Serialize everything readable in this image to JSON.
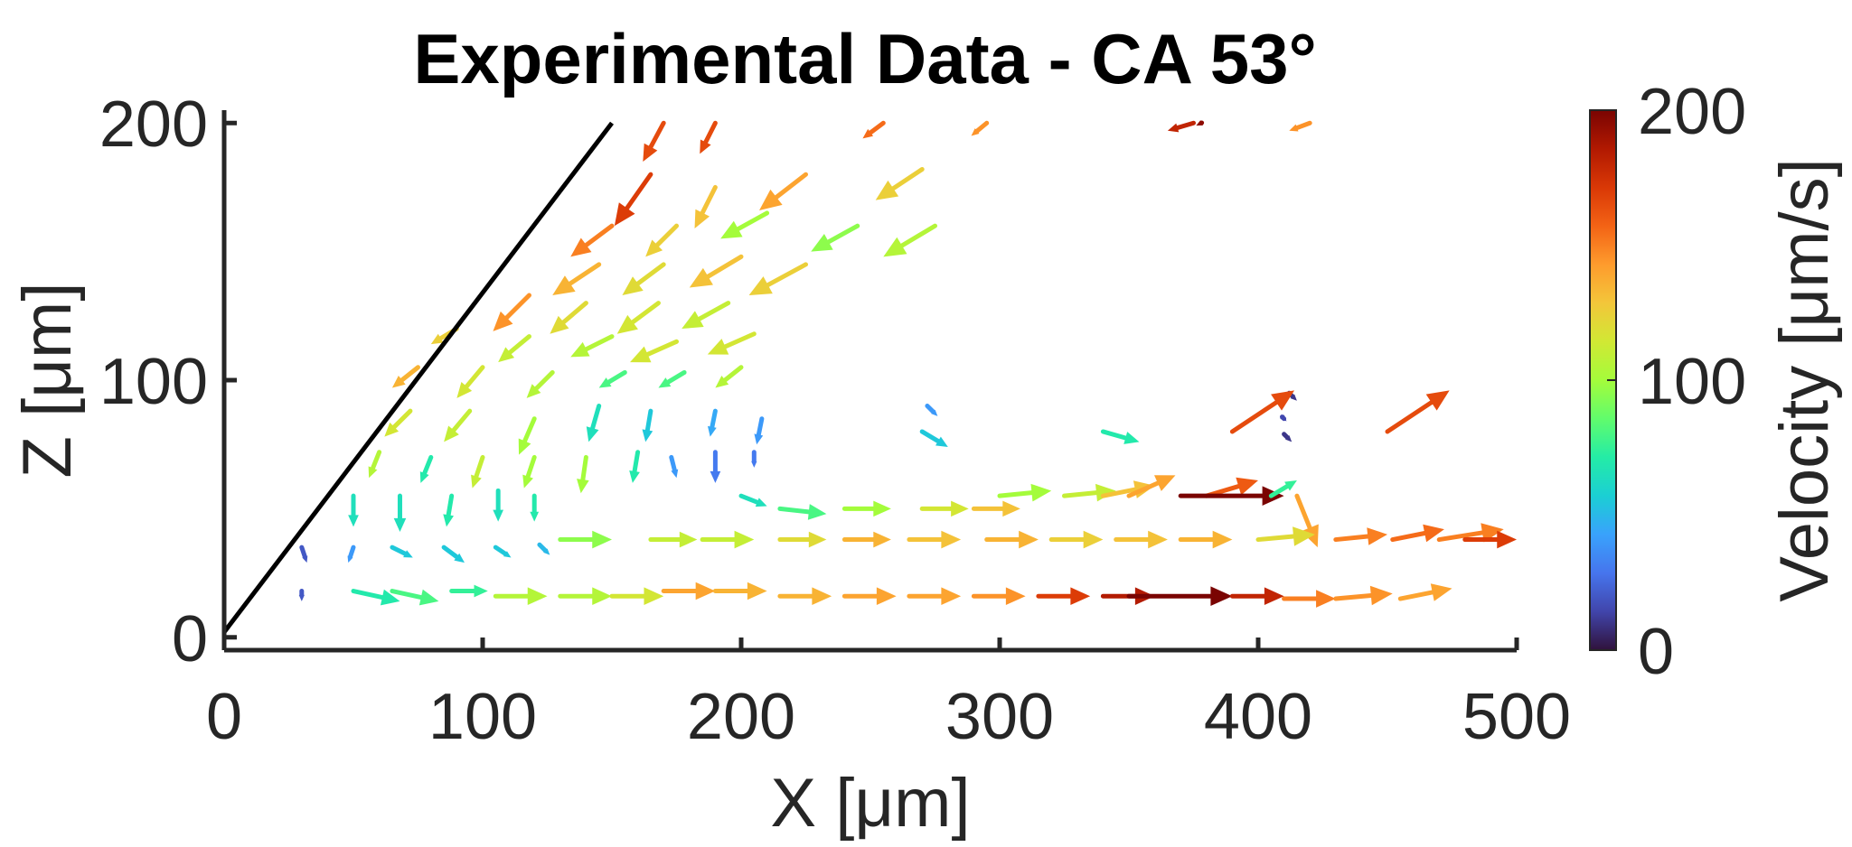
{
  "chart_data": {
    "type": "quiver",
    "title": "Experimental Data - CA 53°",
    "xlabel": "X [μm]",
    "ylabel": "Z [μm]",
    "xlim": [
      0,
      500
    ],
    "ylim": [
      -5,
      205
    ],
    "xticks": [
      0,
      100,
      200,
      300,
      400,
      500
    ],
    "yticks": [
      0,
      100,
      200
    ],
    "xtick_labels": [
      "0",
      "100",
      "200",
      "300",
      "400",
      "500"
    ],
    "ytick_labels": [
      "0",
      "100",
      "200"
    ],
    "colorbar": {
      "label": "Velocity [μm/s]",
      "range": [
        0,
        200
      ],
      "ticks": [
        0,
        100,
        200
      ],
      "tick_labels": [
        "0",
        "100",
        "200"
      ],
      "colormap": [
        "#30123b",
        "#4145ab",
        "#4675ed",
        "#39a2fc",
        "#1bcfd4",
        "#24eca6",
        "#61fc6c",
        "#a4fc3b",
        "#d1e834",
        "#f3c63a",
        "#fe9b2d",
        "#f36315",
        "#d93806",
        "#b11901",
        "#7a0402"
      ]
    },
    "wall_line": {
      "x": [
        0,
        150
      ],
      "z": [
        2,
        200
      ]
    },
    "vectors": [
      [
        170,
        200,
        -8,
        -15,
        165
      ],
      [
        190,
        200,
        -6,
        -12,
        165
      ],
      [
        255,
        200,
        -8,
        -6,
        155
      ],
      [
        295,
        200,
        -6,
        -5,
        145
      ],
      [
        375,
        200,
        -10,
        -3,
        180
      ],
      [
        378,
        200,
        -2,
        -1,
        195
      ],
      [
        420,
        200,
        -8,
        -3,
        145
      ],
      [
        165,
        180,
        -14,
        -20,
        170
      ],
      [
        190,
        175,
        -8,
        -16,
        130
      ],
      [
        225,
        180,
        -18,
        -14,
        140
      ],
      [
        270,
        182,
        -18,
        -12,
        125
      ],
      [
        150,
        160,
        -16,
        -12,
        150
      ],
      [
        175,
        160,
        -12,
        -12,
        125
      ],
      [
        210,
        165,
        -18,
        -10,
        100
      ],
      [
        245,
        160,
        -18,
        -10,
        95
      ],
      [
        275,
        160,
        -20,
        -12,
        105
      ],
      [
        145,
        145,
        -18,
        -12,
        135
      ],
      [
        170,
        145,
        -16,
        -12,
        120
      ],
      [
        200,
        148,
        -20,
        -12,
        130
      ],
      [
        225,
        145,
        -22,
        -12,
        125
      ],
      [
        118,
        133,
        -14,
        -14,
        145
      ],
      [
        140,
        130,
        -14,
        -12,
        120
      ],
      [
        168,
        130,
        -16,
        -12,
        115
      ],
      [
        195,
        130,
        -18,
        -10,
        110
      ],
      [
        90,
        120,
        -10,
        -6,
        125
      ],
      [
        118,
        117,
        -12,
        -10,
        110
      ],
      [
        150,
        117,
        -16,
        -8,
        105
      ],
      [
        175,
        115,
        -18,
        -8,
        115
      ],
      [
        205,
        118,
        -18,
        -8,
        115
      ],
      [
        75,
        105,
        -10,
        -8,
        135
      ],
      [
        100,
        105,
        -10,
        -12,
        115
      ],
      [
        127,
        103,
        -10,
        -10,
        105
      ],
      [
        155,
        103,
        -10,
        -6,
        80
      ],
      [
        178,
        103,
        -10,
        -6,
        80
      ],
      [
        200,
        105,
        -10,
        -8,
        105
      ],
      [
        72,
        88,
        -10,
        -10,
        115
      ],
      [
        95,
        88,
        -10,
        -12,
        110
      ],
      [
        120,
        85,
        -6,
        -14,
        100
      ],
      [
        145,
        90,
        -4,
        -14,
        65
      ],
      [
        165,
        88,
        -2,
        -12,
        55
      ],
      [
        190,
        88,
        -2,
        -10,
        45
      ],
      [
        208,
        85,
        -2,
        -10,
        40
      ],
      [
        272,
        90,
        4,
        -4,
        40
      ],
      [
        412,
        95,
        3,
        -3,
        10
      ],
      [
        410,
        85,
        1,
        -1,
        15
      ],
      [
        60,
        72,
        -4,
        -10,
        105
      ],
      [
        80,
        70,
        -4,
        -10,
        70
      ],
      [
        100,
        70,
        -4,
        -12,
        110
      ],
      [
        120,
        70,
        -4,
        -12,
        100
      ],
      [
        140,
        70,
        -2,
        -14,
        100
      ],
      [
        160,
        72,
        -2,
        -12,
        70
      ],
      [
        173,
        70,
        2,
        -8,
        40
      ],
      [
        190,
        72,
        0,
        -12,
        30
      ],
      [
        205,
        72,
        0,
        -6,
        30
      ],
      [
        270,
        80,
        10,
        -6,
        55
      ],
      [
        340,
        80,
        14,
        -4,
        70
      ],
      [
        390,
        80,
        24,
        16,
        165
      ],
      [
        410,
        79,
        3,
        -3,
        10
      ],
      [
        450,
        80,
        24,
        16,
        165
      ],
      [
        50,
        55,
        0,
        -12,
        65
      ],
      [
        68,
        55,
        0,
        -14,
        65
      ],
      [
        88,
        55,
        -2,
        -12,
        70
      ],
      [
        106,
        57,
        0,
        -12,
        65
      ],
      [
        120,
        55,
        0,
        -10,
        70
      ],
      [
        200,
        55,
        10,
        -4,
        65
      ],
      [
        215,
        50,
        18,
        -2,
        80
      ],
      [
        240,
        50,
        18,
        0,
        100
      ],
      [
        270,
        50,
        18,
        0,
        115
      ],
      [
        290,
        50,
        18,
        0,
        130
      ],
      [
        300,
        55,
        20,
        2,
        100
      ],
      [
        325,
        55,
        20,
        2,
        110
      ],
      [
        340,
        55,
        20,
        4,
        130
      ],
      [
        350,
        55,
        18,
        8,
        140
      ],
      [
        380,
        55,
        20,
        6,
        160
      ],
      [
        370,
        55,
        40,
        0,
        200
      ],
      [
        405,
        55,
        10,
        6,
        75
      ],
      [
        415,
        55,
        8,
        -20,
        140
      ],
      [
        30,
        35,
        2,
        -6,
        20
      ],
      [
        50,
        35,
        -2,
        -6,
        40
      ],
      [
        65,
        35,
        8,
        -4,
        55
      ],
      [
        85,
        35,
        8,
        -6,
        55
      ],
      [
        105,
        35,
        6,
        -4,
        55
      ],
      [
        122,
        36,
        4,
        -4,
        50
      ],
      [
        130,
        38,
        20,
        0,
        95
      ],
      [
        165,
        38,
        18,
        0,
        110
      ],
      [
        185,
        38,
        20,
        0,
        110
      ],
      [
        215,
        38,
        18,
        0,
        120
      ],
      [
        240,
        38,
        18,
        0,
        135
      ],
      [
        265,
        38,
        20,
        0,
        130
      ],
      [
        295,
        38,
        20,
        0,
        135
      ],
      [
        320,
        38,
        20,
        0,
        125
      ],
      [
        345,
        38,
        20,
        0,
        130
      ],
      [
        370,
        38,
        20,
        0,
        135
      ],
      [
        400,
        38,
        22,
        2,
        120
      ],
      [
        430,
        38,
        20,
        2,
        150
      ],
      [
        452,
        38,
        20,
        4,
        155
      ],
      [
        470,
        38,
        25,
        4,
        150
      ],
      [
        480,
        38,
        20,
        0,
        170
      ],
      [
        30,
        18,
        0,
        -4,
        20
      ],
      [
        50,
        18,
        18,
        -4,
        70
      ],
      [
        65,
        18,
        18,
        -4,
        80
      ],
      [
        88,
        18,
        14,
        0,
        75
      ],
      [
        105,
        16,
        20,
        0,
        105
      ],
      [
        130,
        16,
        20,
        0,
        105
      ],
      [
        150,
        16,
        20,
        0,
        115
      ],
      [
        170,
        18,
        20,
        0,
        140
      ],
      [
        190,
        18,
        20,
        0,
        135
      ],
      [
        215,
        16,
        20,
        0,
        135
      ],
      [
        240,
        16,
        20,
        0,
        140
      ],
      [
        265,
        16,
        20,
        0,
        140
      ],
      [
        290,
        16,
        20,
        0,
        145
      ],
      [
        315,
        16,
        20,
        0,
        170
      ],
      [
        340,
        16,
        20,
        0,
        185
      ],
      [
        350,
        16,
        40,
        0,
        200
      ],
      [
        390,
        16,
        20,
        0,
        180
      ],
      [
        410,
        15,
        20,
        0,
        150
      ],
      [
        430,
        15,
        22,
        2,
        145
      ],
      [
        455,
        15,
        20,
        4,
        140
      ]
    ]
  }
}
